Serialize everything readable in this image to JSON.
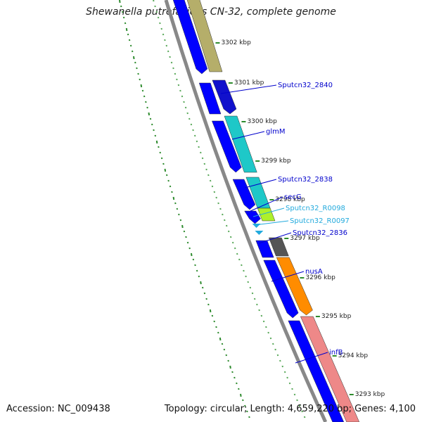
{
  "title": "Shewanella putrefaciens CN-32, complete genome",
  "footer": {
    "accession": "Accession: NC_009438",
    "summary": "Topology: circular; Length: 4,659,220 bp; Genes: 4,100"
  },
  "ticks": [
    "3302 kbp",
    "3301 kbp",
    "3300 kbp",
    "3299 kbp",
    "3298 kbp",
    "3297 kbp",
    "3296 kbp",
    "3295 kbp",
    "3294 kbp",
    "3293 kbp"
  ],
  "features": [
    {
      "label": "Sputcn32_2840",
      "color": "#0000cc"
    },
    {
      "label": "glmM",
      "color": "#0000cc"
    },
    {
      "label": "Sputcn32_2838",
      "color": "#0000cc"
    },
    {
      "label": "secG",
      "color": "#0000cc"
    },
    {
      "label": "Sputcn32_R0098",
      "color": "#22aadd"
    },
    {
      "label": "Sputcn32_R0097",
      "color": "#22aadd"
    },
    {
      "label": "Sputcn32_2836",
      "color": "#0000cc"
    },
    {
      "label": "nusA",
      "color": "#0000cc"
    },
    {
      "label": "infB",
      "color": "#0000cc"
    }
  ],
  "colors": {
    "cds": "#0000ff",
    "cog_olive": "#b5ae6a",
    "cog_cyan": "#1ec8c8",
    "cog_lime": "#aef02a",
    "cog_gray": "#555555",
    "cog_orange": "#ff8c00",
    "cog_pink": "#ee8888",
    "rna": "#22aadd",
    "backbone": "#888888",
    "gc_track": "#2e8b2e"
  }
}
